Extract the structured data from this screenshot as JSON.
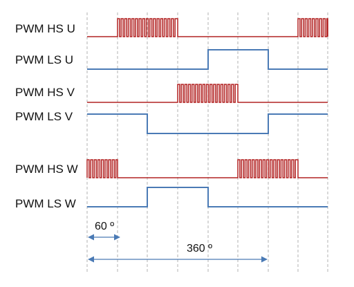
{
  "signals": [
    {
      "label": "PWM HS U",
      "type": "hs"
    },
    {
      "label": "PWM LS U",
      "type": "ls"
    },
    {
      "label": "PWM HS V",
      "type": "hs"
    },
    {
      "label": "PWM LS V",
      "type": "ls"
    },
    {
      "label": "PWM HS W",
      "type": "hs"
    },
    {
      "label": "PWM LS W",
      "type": "ls"
    }
  ],
  "dimensions": {
    "sector_label": "60 º",
    "period_label": "360 º"
  },
  "colors": {
    "hs_signal": "#b22222",
    "ls_signal": "#4a7ab5",
    "grid": "#b0b0b0",
    "dimension_arrow": "#4a7ab5"
  }
}
